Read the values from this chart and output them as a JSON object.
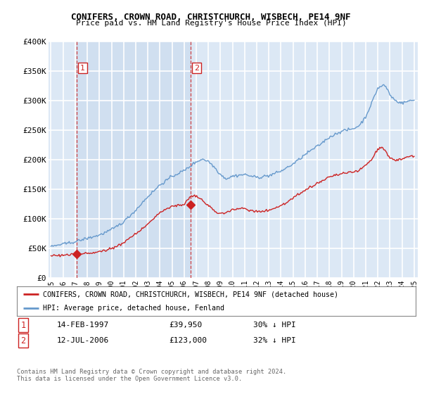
{
  "title": "CONIFERS, CROWN ROAD, CHRISTCHURCH, WISBECH, PE14 9NF",
  "subtitle": "Price paid vs. HM Land Registry's House Price Index (HPI)",
  "legend_line1": "CONIFERS, CROWN ROAD, CHRISTCHURCH, WISBECH, PE14 9NF (detached house)",
  "legend_line2": "HPI: Average price, detached house, Fenland",
  "footer": "Contains HM Land Registry data © Crown copyright and database right 2024.\nThis data is licensed under the Open Government Licence v3.0.",
  "sale1_date": "14-FEB-1997",
  "sale1_price": "£39,950",
  "sale1_hpi": "30% ↓ HPI",
  "sale2_date": "12-JUL-2006",
  "sale2_price": "£123,000",
  "sale2_hpi": "32% ↓ HPI",
  "ylim": [
    0,
    400000
  ],
  "yticks": [
    0,
    50000,
    100000,
    150000,
    200000,
    250000,
    300000,
    350000,
    400000
  ],
  "ytick_labels": [
    "£0",
    "£50K",
    "£100K",
    "£150K",
    "£200K",
    "£250K",
    "£300K",
    "£350K",
    "£400K"
  ],
  "bg_color": "#dce8f5",
  "grid_color": "#ffffff",
  "shade_color": "#ccdcee",
  "hpi_color": "#6699cc",
  "price_color": "#cc2222",
  "vline_color": "#cc2222",
  "marker1_x": 1997.12,
  "marker1_y": 39950,
  "marker2_x": 2006.54,
  "marker2_y": 123000,
  "xlim_left": 1994.8,
  "xlim_right": 2025.3
}
